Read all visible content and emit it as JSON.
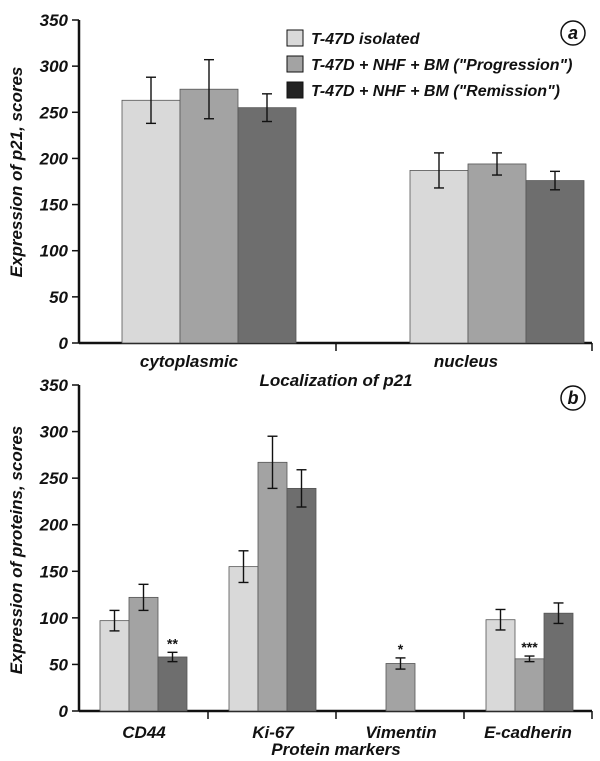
{
  "colors": {
    "isolated": "#d9d9d9",
    "progression": "#a3a3a3",
    "remission": "#6e6e6e",
    "legend_remission_swatch": "#222222",
    "axis": "#111111"
  },
  "legend": {
    "entries": [
      "T-47D isolated",
      "T-47D + NHF + BM (\"Progression\")",
      "T-47D + NHF + BM (\"Remission\")"
    ]
  },
  "chart_data": [
    {
      "panel_label": "a",
      "type": "bar",
      "xlabel": "Localization of  p21",
      "ylabel": "Expression of p21, scores",
      "ylim": [
        0,
        350
      ],
      "yticks": [
        0,
        50,
        100,
        150,
        200,
        250,
        300,
        350
      ],
      "categories": [
        "cytoplasmic",
        "nucleus"
      ],
      "series": [
        {
          "name": "T-47D isolated",
          "values": [
            263,
            187
          ],
          "errors": [
            25,
            19
          ],
          "annotations": [
            "",
            ""
          ]
        },
        {
          "name": "T-47D + NHF + BM (\"Progression\")",
          "values": [
            275,
            194
          ],
          "errors": [
            32,
            12
          ],
          "annotations": [
            "",
            ""
          ]
        },
        {
          "name": "T-47D + NHF + BM (\"Remission\")",
          "values": [
            255,
            176
          ],
          "errors": [
            15,
            10
          ],
          "annotations": [
            "",
            ""
          ]
        }
      ],
      "grid": false
    },
    {
      "panel_label": "b",
      "type": "bar",
      "xlabel": "Protein markers",
      "ylabel": "Expression of proteins, scores",
      "ylim": [
        0,
        350
      ],
      "yticks": [
        0,
        50,
        100,
        150,
        200,
        250,
        300,
        350
      ],
      "categories": [
        "CD44",
        "Ki-67",
        "Vimentin",
        "E-cadherin"
      ],
      "series": [
        {
          "name": "T-47D isolated",
          "values": [
            97,
            155,
            0,
            98
          ],
          "errors": [
            11,
            17,
            0,
            11
          ],
          "annotations": [
            "",
            "",
            "",
            ""
          ]
        },
        {
          "name": "T-47D + NHF + BM (\"Progression\")",
          "values": [
            122,
            267,
            51,
            56
          ],
          "errors": [
            14,
            28,
            6,
            3
          ],
          "annotations": [
            "",
            "",
            "*",
            "***"
          ]
        },
        {
          "name": "T-47D + NHF + BM (\"Remission\")",
          "values": [
            58,
            239,
            0,
            105
          ],
          "errors": [
            5,
            20,
            0,
            11
          ],
          "annotations": [
            "**",
            "",
            "",
            ""
          ]
        }
      ],
      "grid": false
    }
  ]
}
